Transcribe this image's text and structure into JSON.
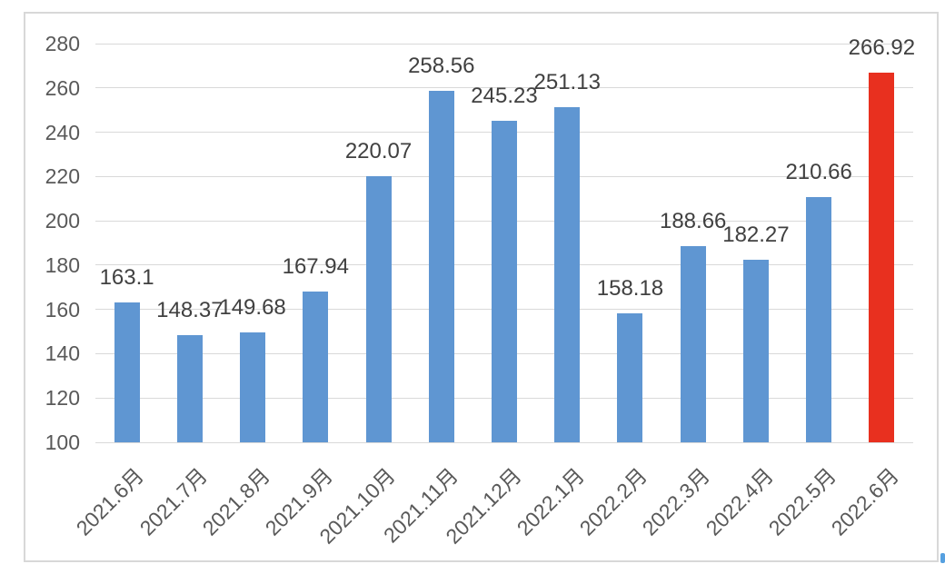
{
  "chart_data": {
    "type": "bar",
    "title": "",
    "xlabel": "",
    "ylabel": "",
    "categories": [
      "2021.6月",
      "2021.7月",
      "2021.8月",
      "2021.9月",
      "2021.10月",
      "2021.11月",
      "2021.12月",
      "2022.1月",
      "2022.2月",
      "2022.3月",
      "2022.4月",
      "2022.5月",
      "2022.6月"
    ],
    "values": [
      163.1,
      148.37,
      149.68,
      167.94,
      220.07,
      258.56,
      245.23,
      251.13,
      158.18,
      188.66,
      182.27,
      210.66,
      266.92
    ],
    "data_labels": [
      "163.1",
      "148.37",
      "149.68",
      "167.94",
      "220.07",
      "258.56",
      "245.23",
      "251.13",
      "158.18",
      "188.66",
      "182.27",
      "210.66",
      "266.92"
    ],
    "ylim": [
      100,
      280
    ],
    "yticks": [
      100,
      120,
      140,
      160,
      180,
      200,
      220,
      240,
      260,
      280
    ],
    "grid": true,
    "legend": false,
    "label_position": "outside-end",
    "highlight_index": 12,
    "series_color": "#5F96D2",
    "highlight_color": "#E8301F"
  },
  "colors": {
    "gridline": "#D9D9D9",
    "frame_border": "#D8D8D8",
    "axis_text": "#595959",
    "data_label_text": "#404040",
    "background": "#FFFFFF",
    "corner_mark": "#56A0E0"
  }
}
